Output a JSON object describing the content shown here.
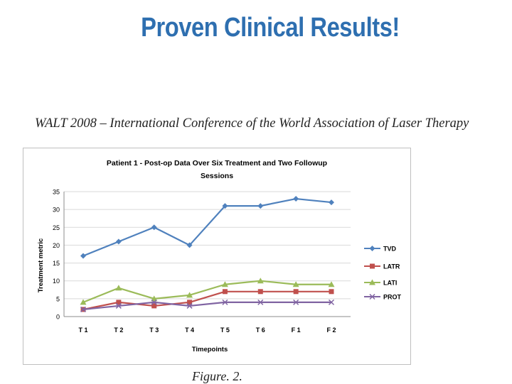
{
  "slide": {
    "title": "Proven Clinical Results!",
    "subtitle": "WALT 2008 – International Conference of the World Association of Laser Therapy",
    "caption": "Figure. 2."
  },
  "chart_data": {
    "type": "line",
    "title_line1": "Patient 1 - Post-op Data Over Six Treatment and Two Followup",
    "title_line2": "Sessions",
    "xlabel": "Timepoints",
    "ylabel": "Treatment metric",
    "categories": [
      "T 1",
      "T 2",
      "T 3",
      "T 4",
      "T 5",
      "T 6",
      "F 1",
      "F 2"
    ],
    "ylim": [
      0,
      35
    ],
    "yticks": [
      0,
      5,
      10,
      15,
      20,
      25,
      30,
      35
    ],
    "grid": "horizontal",
    "legend": "right",
    "series": [
      {
        "name": "TVD",
        "color": "#4f81bd",
        "marker": "diamond",
        "values": [
          17,
          21,
          25,
          20,
          31,
          31,
          33,
          32
        ]
      },
      {
        "name": "LATR",
        "color": "#c0504d",
        "marker": "square",
        "values": [
          2,
          4,
          3,
          4,
          7,
          7,
          7,
          7
        ]
      },
      {
        "name": "LATI",
        "color": "#9bbb59",
        "marker": "triangle",
        "values": [
          4,
          8,
          5,
          6,
          9,
          10,
          9,
          9
        ]
      },
      {
        "name": "PROT",
        "color": "#8064a2",
        "marker": "x",
        "values": [
          2,
          3,
          4,
          3,
          4,
          4,
          4,
          4
        ]
      }
    ]
  }
}
